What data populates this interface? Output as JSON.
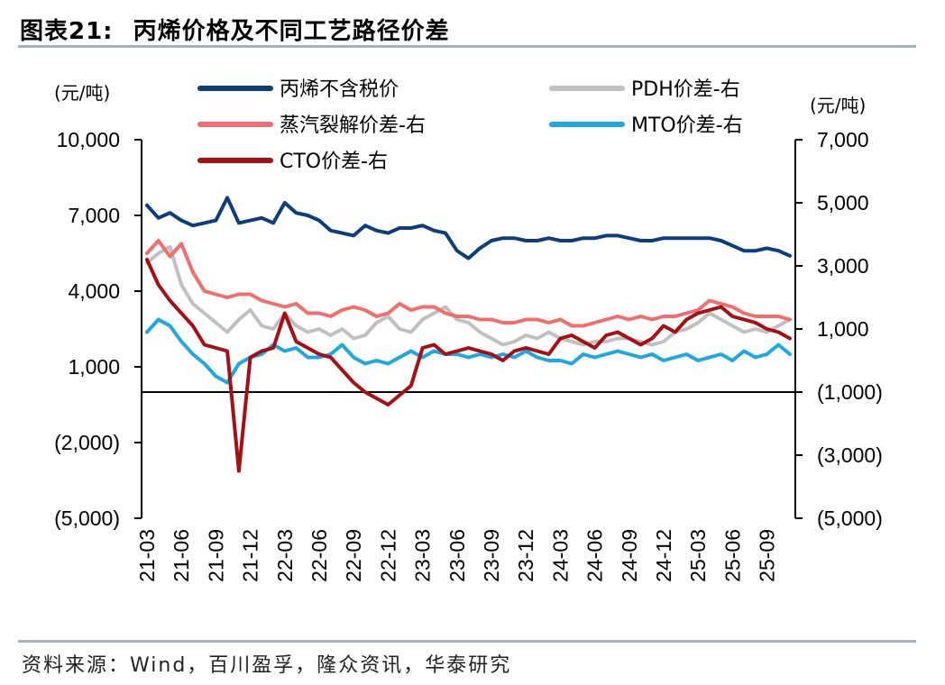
{
  "header": {
    "figure_no": "图表21:",
    "title": "丙烯价格及不同工艺路径价差"
  },
  "footer": {
    "source": "资料来源：Wind，百川盈孚，隆众资讯，华泰研究"
  },
  "chart_data": {
    "type": "line",
    "title": "丙烯价格及不同工艺路径价差",
    "left_axis": {
      "unit": "(元/吨)",
      "ticks": [
        "10,000",
        "7,000",
        "4,000",
        "1,000",
        "(2,000)",
        "(5,000)"
      ],
      "tick_values": [
        10000,
        7000,
        4000,
        1000,
        -2000,
        -5000
      ],
      "ylim": [
        -5000,
        10000
      ]
    },
    "right_axis": {
      "unit": "(元/吨)",
      "ticks": [
        "7,000",
        "5,000",
        "3,000",
        "1,000",
        "(1,000)",
        "(3,000)",
        "(5,000)"
      ],
      "tick_values": [
        7000,
        5000,
        3000,
        1000,
        -1000,
        -3000,
        -5000
      ],
      "ylim": [
        -5000,
        7000
      ]
    },
    "x_ticks": [
      "21-03",
      "21-06",
      "21-09",
      "21-12",
      "22-03",
      "22-06",
      "22-09",
      "22-12",
      "23-03",
      "23-06",
      "23-09",
      "23-12",
      "24-03",
      "24-06",
      "24-09",
      "24-12",
      "25-03",
      "25-06",
      "25-09"
    ],
    "months": [
      "21-03",
      "21-04",
      "21-05",
      "21-06",
      "21-07",
      "21-08",
      "21-09",
      "21-10",
      "21-11",
      "21-12",
      "22-01",
      "22-02",
      "22-03",
      "22-04",
      "22-05",
      "22-06",
      "22-07",
      "22-08",
      "22-09",
      "22-10",
      "22-11",
      "22-12",
      "23-01",
      "23-02",
      "23-03",
      "23-04",
      "23-05",
      "23-06",
      "23-07",
      "23-08",
      "23-09",
      "23-10",
      "23-11",
      "23-12",
      "24-01",
      "24-02",
      "24-03",
      "24-04",
      "24-05",
      "24-06",
      "24-07",
      "24-08",
      "24-09",
      "24-10",
      "24-11",
      "24-12",
      "25-01",
      "25-02",
      "25-03",
      "25-04",
      "25-05",
      "25-06",
      "25-07",
      "25-08",
      "25-09",
      "25-10",
      "25-11"
    ],
    "series": [
      {
        "name": "丙烯不含税价",
        "axis": "left",
        "color": "#0f3d7a",
        "values": [
          7400,
          6900,
          7100,
          6800,
          6600,
          6700,
          6800,
          7700,
          6700,
          6800,
          6900,
          6700,
          7500,
          7100,
          7000,
          6800,
          6400,
          6300,
          6200,
          6600,
          6400,
          6300,
          6500,
          6500,
          6600,
          6400,
          6300,
          5600,
          5300,
          5700,
          6000,
          6100,
          6100,
          6000,
          6000,
          6100,
          6000,
          6000,
          6100,
          6100,
          6200,
          6200,
          6100,
          6000,
          6000,
          6100,
          6100,
          6100,
          6100,
          6100,
          6000,
          5800,
          5600,
          5600,
          5700,
          5600,
          5400
        ]
      },
      {
        "name": "PDH价差-右",
        "axis": "right",
        "color": "#c0c0c0",
        "values": [
          3100,
          3400,
          3600,
          2400,
          1800,
          1500,
          1200,
          900,
          1300,
          1600,
          1100,
          1000,
          1500,
          1100,
          900,
          1000,
          800,
          1000,
          700,
          800,
          1200,
          1400,
          1000,
          900,
          1300,
          1500,
          1700,
          1300,
          1200,
          900,
          700,
          500,
          600,
          800,
          700,
          900,
          700,
          600,
          500,
          600,
          600,
          700,
          700,
          600,
          500,
          600,
          900,
          1000,
          1200,
          1500,
          1300,
          1100,
          900,
          1000,
          900,
          1100,
          1300
        ]
      },
      {
        "name": "蒸汽裂解价差-右",
        "axis": "right",
        "color": "#f26d6d",
        "values": [
          3400,
          3800,
          3300,
          3700,
          2800,
          2200,
          2100,
          2000,
          2100,
          2100,
          1900,
          1800,
          1700,
          1800,
          1500,
          1500,
          1400,
          1600,
          1700,
          1600,
          1400,
          1500,
          1800,
          1600,
          1700,
          1700,
          1500,
          1400,
          1400,
          1300,
          1300,
          1200,
          1200,
          1300,
          1300,
          1200,
          1300,
          1100,
          1100,
          1200,
          1300,
          1400,
          1300,
          1400,
          1300,
          1400,
          1400,
          1500,
          1600,
          1900,
          1800,
          1700,
          1500,
          1400,
          1400,
          1400,
          1300
        ]
      },
      {
        "name": "MTO价差-右",
        "axis": "right",
        "color": "#1fa8e0",
        "values": [
          900,
          1300,
          1100,
          600,
          200,
          -100,
          -500,
          -700,
          -100,
          100,
          200,
          500,
          300,
          400,
          100,
          100,
          200,
          500,
          100,
          -100,
          0,
          -100,
          100,
          300,
          100,
          300,
          200,
          200,
          100,
          200,
          100,
          200,
          100,
          300,
          100,
          0,
          0,
          -100,
          200,
          100,
          200,
          300,
          200,
          100,
          200,
          0,
          100,
          200,
          0,
          100,
          200,
          0,
          300,
          100,
          200,
          500,
          200
        ]
      },
      {
        "name": "CTO价差-右",
        "axis": "right",
        "color": "#a50f15",
        "values": [
          3200,
          2400,
          1900,
          1500,
          1100,
          500,
          400,
          300,
          -3500,
          100,
          300,
          400,
          1500,
          600,
          400,
          200,
          100,
          -300,
          -700,
          -1000,
          -1200,
          -1400,
          -1100,
          -800,
          400,
          500,
          200,
          300,
          400,
          300,
          200,
          0,
          300,
          400,
          300,
          200,
          700,
          800,
          600,
          400,
          800,
          900,
          700,
          500,
          700,
          1100,
          900,
          1300,
          1500,
          1600,
          1700,
          1400,
          1300,
          1200,
          1000,
          900,
          700
        ]
      }
    ],
    "legend": [
      "丙烯不含税价",
      "PDH价差-右",
      "蒸汽裂解价差-右",
      "MTO价差-右",
      "CTO价差-右"
    ],
    "zero_line": true,
    "grid": false
  }
}
